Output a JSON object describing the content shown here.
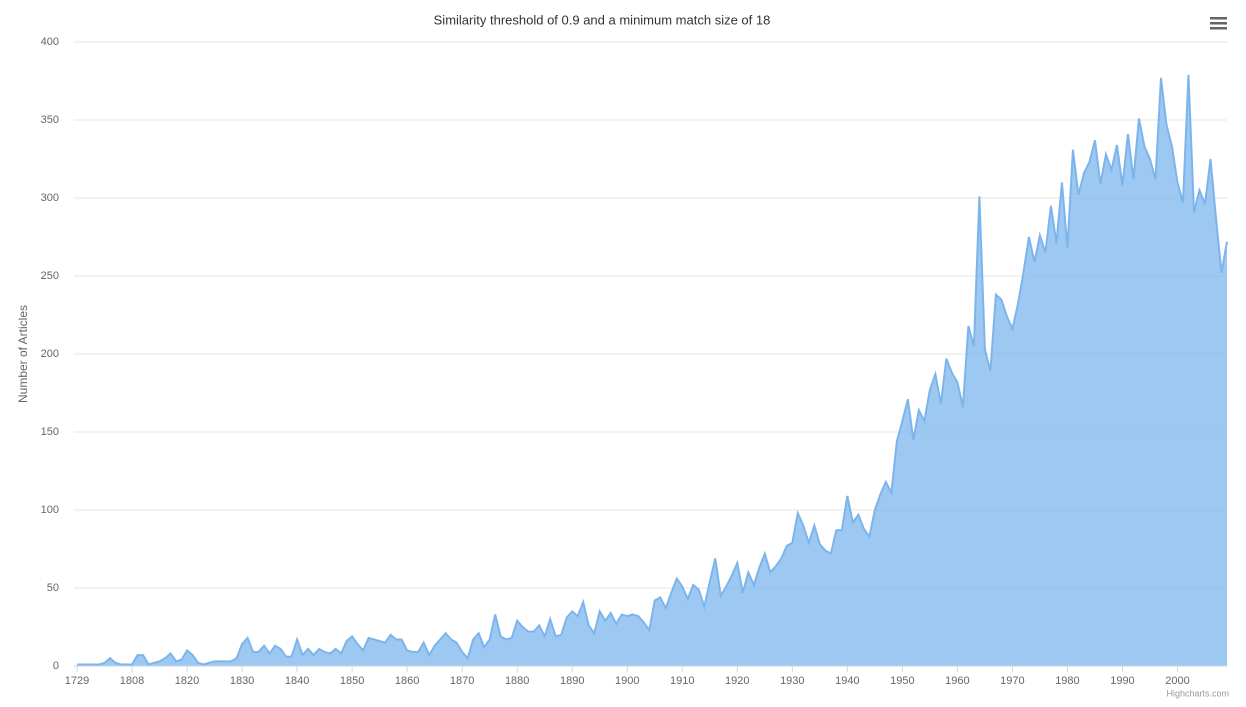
{
  "chart_data": {
    "type": "area",
    "title": "Similarity threshold of 0.9 and a minimum match size of 18",
    "y_label": "Number of Articles",
    "credit": "Highcharts.com",
    "color": "#7cb5ec",
    "grid": true,
    "ylim": [
      0,
      400
    ],
    "yticks": [
      0,
      50,
      100,
      150,
      200,
      250,
      300,
      350,
      400
    ],
    "categories": [
      "1729",
      null,
      null,
      null,
      null,
      null,
      null,
      null,
      null,
      null,
      "1808",
      null,
      null,
      null,
      null,
      null,
      null,
      null,
      null,
      null,
      "1820",
      null,
      null,
      null,
      null,
      null,
      null,
      null,
      null,
      null,
      "1830",
      null,
      null,
      null,
      null,
      null,
      null,
      null,
      null,
      null,
      "1840",
      null,
      null,
      null,
      null,
      null,
      null,
      null,
      null,
      null,
      "1850",
      null,
      null,
      null,
      null,
      null,
      null,
      null,
      null,
      null,
      "1860",
      null,
      null,
      null,
      null,
      null,
      null,
      null,
      null,
      null,
      "1870",
      null,
      null,
      null,
      null,
      null,
      null,
      null,
      null,
      null,
      "1880",
      null,
      null,
      null,
      null,
      null,
      null,
      null,
      null,
      null,
      "1890",
      null,
      null,
      null,
      null,
      null,
      null,
      null,
      null,
      null,
      "1900",
      null,
      null,
      null,
      null,
      null,
      null,
      null,
      null,
      null,
      "1910",
      null,
      null,
      null,
      null,
      null,
      null,
      null,
      null,
      null,
      "1920",
      null,
      null,
      null,
      null,
      null,
      null,
      null,
      null,
      null,
      "1930",
      null,
      null,
      null,
      null,
      null,
      null,
      null,
      null,
      null,
      "1940",
      null,
      null,
      null,
      null,
      null,
      null,
      null,
      null,
      null,
      "1950",
      null,
      null,
      null,
      null,
      null,
      null,
      null,
      null,
      null,
      "1960",
      null,
      null,
      null,
      null,
      null,
      null,
      null,
      null,
      null,
      "1970",
      null,
      null,
      null,
      null,
      null,
      null,
      null,
      null,
      null,
      "1980",
      null,
      null,
      null,
      null,
      null,
      null,
      null,
      null,
      null,
      "1990",
      null,
      null,
      null,
      null,
      null,
      null,
      null,
      null,
      null,
      "2000",
      null,
      null,
      null,
      null,
      null,
      null,
      null,
      null,
      null
    ],
    "values": [
      1,
      1,
      1,
      1,
      1,
      2,
      5,
      2,
      1,
      1,
      1,
      7,
      7,
      1,
      2,
      3,
      5,
      8,
      3,
      4,
      10,
      7,
      2,
      1,
      2,
      3,
      3,
      3,
      3,
      5,
      14,
      18,
      9,
      9,
      13,
      8,
      13,
      11,
      6,
      6,
      17,
      7,
      11,
      7,
      11,
      9,
      8,
      11,
      8,
      16,
      19,
      14,
      10,
      18,
      17,
      16,
      15,
      20,
      17,
      17,
      10,
      9,
      9,
      15,
      7,
      13,
      17,
      21,
      17,
      15,
      9,
      5,
      17,
      21,
      12,
      17,
      33,
      19,
      17,
      18,
      29,
      25,
      22,
      22,
      26,
      19,
      30,
      19,
      20,
      31,
      35,
      32,
      41,
      26,
      21,
      35,
      29,
      34,
      27,
      33,
      32,
      33,
      32,
      28,
      23,
      42,
      44,
      37,
      47,
      56,
      51,
      43,
      52,
      49,
      38,
      54,
      69,
      45,
      51,
      58,
      66,
      47,
      60,
      52,
      63,
      72,
      60,
      64,
      69,
      77,
      79,
      98,
      90,
      79,
      90,
      78,
      74,
      72,
      87,
      87,
      109,
      92,
      97,
      88,
      83,
      100,
      110,
      118,
      111,
      144,
      157,
      171,
      145,
      164,
      157,
      177,
      187,
      168,
      197,
      188,
      182,
      166,
      218,
      205,
      301,
      203,
      189,
      238,
      235,
      224,
      216,
      232,
      252,
      275,
      259,
      276,
      265,
      295,
      271,
      310,
      268,
      331,
      302,
      316,
      323,
      337,
      309,
      328,
      318,
      334,
      308,
      341,
      312,
      351,
      333,
      325,
      312,
      377,
      347,
      333,
      310,
      297,
      379,
      291,
      305,
      296,
      325,
      287,
      252,
      272
    ]
  }
}
